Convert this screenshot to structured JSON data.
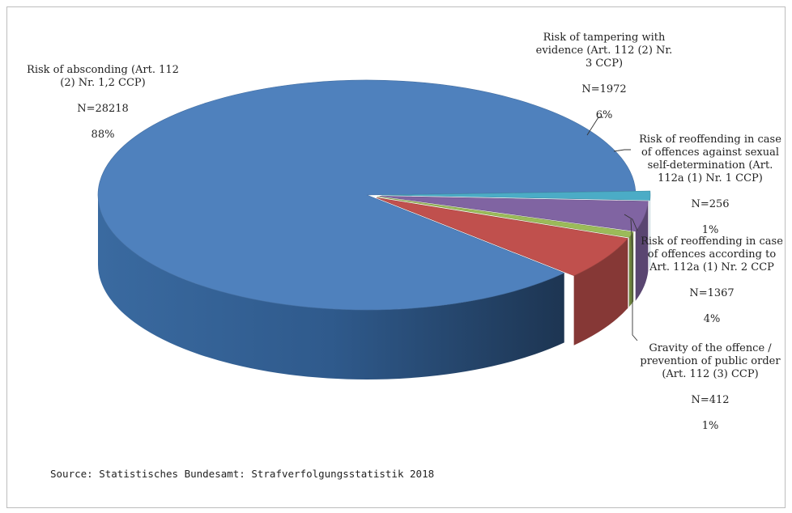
{
  "source": "Source: Statistisches Bundesamt: Strafverfolgungsstatistik 2018",
  "chart_data": {
    "type": "pie",
    "style": "3d-exploded",
    "legend": "none",
    "slices": [
      {
        "label": "Risk of absconding (Art. 112 (2) Nr. 1,2 CCP)",
        "n_text": "N=28218",
        "pct_text": "88%",
        "value": 28218,
        "color": "#4f81bd"
      },
      {
        "label": "Risk of tampering with evidence (Art. 112 (2) Nr. 3 CCP)",
        "n_text": "N=1972",
        "pct_text": "6%",
        "value": 1972,
        "color": "#c0504d"
      },
      {
        "label": "Risk of reoffending in case of offences against sexual self-determination (Art. 112a (1) Nr. 1 CCP)",
        "n_text": "N=256",
        "pct_text": "1%",
        "value": 256,
        "color": "#9bbb59"
      },
      {
        "label": "Risk of reoffending in case of offences according to Art. 112a (1) Nr. 2 CCP",
        "n_text": "N=1367",
        "pct_text": "4%",
        "value": 1367,
        "color": "#8064a2"
      },
      {
        "label": "Gravity of the offence / prevention of public order (Art. 112 (3) CCP)",
        "n_text": "N=412",
        "pct_text": "1%",
        "value": 412,
        "color": "#4bacc6"
      }
    ]
  }
}
